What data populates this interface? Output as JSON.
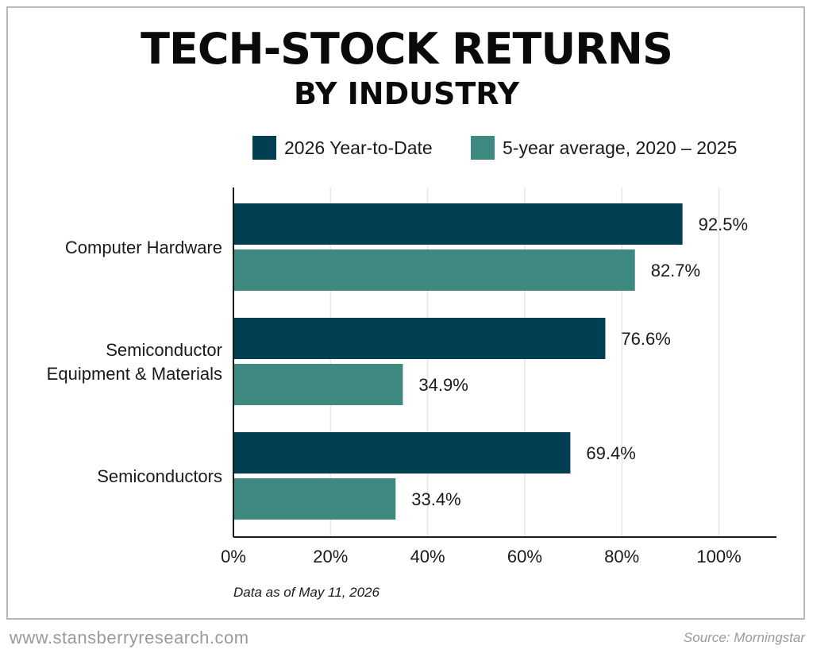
{
  "header": {
    "title": "TECH-STOCK RETURNS",
    "subtitle": "BY INDUSTRY"
  },
  "legend": {
    "items": [
      {
        "label": "2026 Year-to-Date",
        "color": "#023f52"
      },
      {
        "label": "5-year average, 2020 – 2025",
        "color": "#3f8a80"
      }
    ]
  },
  "chart_data": {
    "type": "bar",
    "orientation": "horizontal",
    "title": "TECH-STOCK RETURNS",
    "subtitle": "BY INDUSTRY",
    "categories": [
      [
        "Computer Hardware"
      ],
      [
        "Semiconductor",
        "Equipment & Materials"
      ],
      [
        "Semiconductors"
      ]
    ],
    "series": [
      {
        "name": "2026 Year-to-Date",
        "color": "#023f52",
        "values": [
          92.5,
          76.6,
          69.4
        ],
        "labels": [
          "92.5%",
          "76.6%",
          "69.4%"
        ]
      },
      {
        "name": "5-year average, 2020 – 2025",
        "color": "#3f8a80",
        "values": [
          82.7,
          34.9,
          33.4
        ],
        "labels": [
          "82.7%",
          "34.9%",
          "33.4%"
        ]
      }
    ],
    "xlim": [
      0,
      112
    ],
    "xticks": [
      0,
      20,
      40,
      60,
      80,
      100
    ],
    "xtick_labels": [
      "0%",
      "20%",
      "40%",
      "60%",
      "80%",
      "100%"
    ],
    "grid": "vertical",
    "legend_position": "top-right",
    "xlabel": "",
    "ylabel": ""
  },
  "note": "Data as of May 11, 2026",
  "footer": {
    "website": "www.stansberryresearch.com",
    "source": "Source: Morningstar"
  }
}
